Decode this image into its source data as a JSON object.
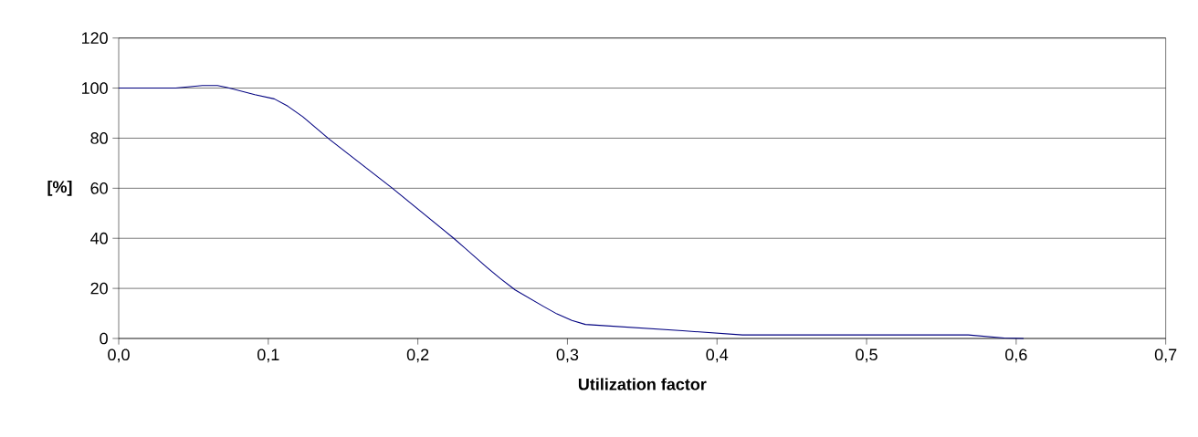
{
  "chart_data": {
    "type": "line",
    "xlabel": "Utilization factor",
    "ylabel": "[%]",
    "xlim": [
      0,
      0.7
    ],
    "ylim": [
      0,
      120
    ],
    "xticks": [
      {
        "value": 0,
        "label": "0,0"
      },
      {
        "value": 0.1,
        "label": "0,1"
      },
      {
        "value": 0.2,
        "label": "0,2"
      },
      {
        "value": 0.3,
        "label": "0,3"
      },
      {
        "value": 0.4,
        "label": "0,4"
      },
      {
        "value": 0.5,
        "label": "0,5"
      },
      {
        "value": 0.6,
        "label": "0,6"
      },
      {
        "value": 0.7,
        "label": "0,7"
      }
    ],
    "yticks": [
      0,
      20,
      40,
      60,
      80,
      100,
      120
    ],
    "grid": "y",
    "marker": "none",
    "line_style": "solid",
    "series": [
      {
        "color": "#000080",
        "x": [
          0,
          0.038,
          0.056,
          0.066,
          0.072,
          0.091,
          0.104,
          0.113,
          0.123,
          0.141,
          0.183,
          0.224,
          0.246,
          0.255,
          0.265,
          0.284,
          0.293,
          0.303,
          0.312,
          0.377,
          0.417,
          0.568,
          0.592,
          0.605
        ],
        "values": [
          100,
          100,
          101,
          101,
          100.3,
          97.4,
          95.7,
          92.8,
          88.6,
          79.5,
          60,
          40,
          28.5,
          24,
          19.4,
          12.8,
          9.8,
          7.2,
          5.6,
          3.1,
          1.4,
          1.4,
          0.2,
          0
        ]
      }
    ]
  }
}
